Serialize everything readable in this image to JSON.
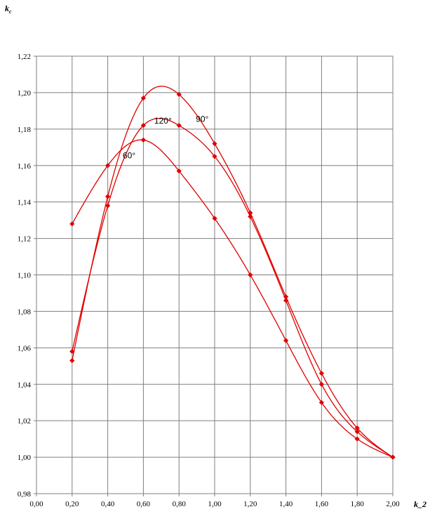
{
  "chart_data": {
    "type": "line",
    "xlabel": "k_2",
    "ylabel": "k",
    "ylabel_sub": "c",
    "xlim": [
      0.0,
      2.0
    ],
    "ylim": [
      0.98,
      1.22
    ],
    "x_ticks": [
      "0,00",
      "0,20",
      "0,40",
      "0,60",
      "0,80",
      "1,00",
      "1,20",
      "1,40",
      "1,60",
      "1,80",
      "2,00"
    ],
    "y_ticks": [
      "0,98",
      "1,00",
      "1,02",
      "1,04",
      "1,06",
      "1,08",
      "1,10",
      "1,12",
      "1,14",
      "1,16",
      "1,18",
      "1,20",
      "1,22"
    ],
    "grid": true,
    "line_color": "#e00000",
    "x": [
      0.2,
      0.4,
      0.6,
      0.8,
      1.0,
      1.2,
      1.4,
      1.6,
      1.8,
      2.0
    ],
    "series": [
      {
        "name": "90°",
        "label_x": 0.93,
        "label_y": 1.184,
        "values": [
          1.053,
          1.143,
          1.197,
          1.199,
          1.172,
          1.134,
          1.088,
          1.046,
          1.016,
          1.0
        ]
      },
      {
        "name": "120°",
        "label_x": 0.71,
        "label_y": 1.183,
        "values": [
          1.058,
          1.138,
          1.182,
          1.182,
          1.165,
          1.132,
          1.086,
          1.04,
          1.014,
          1.0
        ]
      },
      {
        "name": "60°",
        "label_x": 0.52,
        "label_y": 1.164,
        "values": [
          1.128,
          1.16,
          1.174,
          1.157,
          1.131,
          1.1,
          1.064,
          1.03,
          1.01,
          1.0
        ]
      }
    ]
  }
}
